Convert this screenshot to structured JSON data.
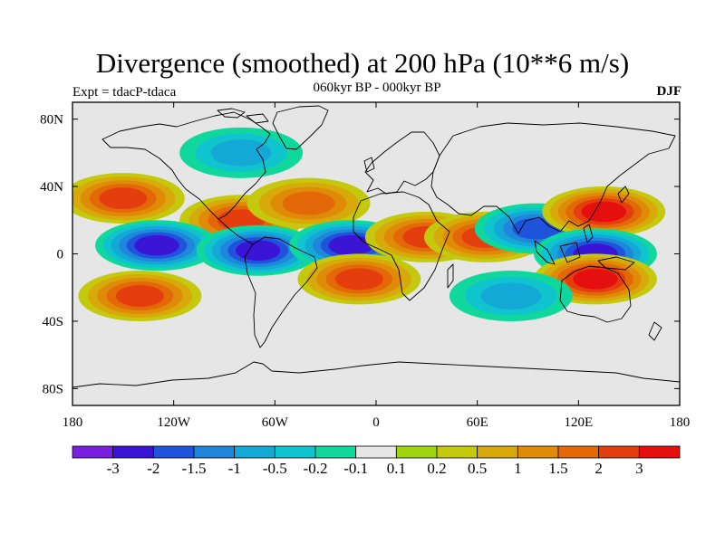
{
  "figure": {
    "title": "Divergence (smoothed) at 200 hPa (10**6 m/s)",
    "subtitle": "060kyr BP - 000kyr BP",
    "experiment": "Expt = tdacP-tdaca",
    "season": "DJF"
  },
  "map": {
    "projection": "cylindrical equidistant",
    "lon_range": [
      -180,
      180
    ],
    "lat_range": [
      -90,
      90
    ],
    "lon_ticks": [
      {
        "value": -180,
        "label": "180"
      },
      {
        "value": -120,
        "label": "120W"
      },
      {
        "value": -60,
        "label": "60W"
      },
      {
        "value": 0,
        "label": "0"
      },
      {
        "value": 60,
        "label": "60E"
      },
      {
        "value": 120,
        "label": "120E"
      },
      {
        "value": 180,
        "label": "180"
      }
    ],
    "lat_ticks": [
      {
        "value": 80,
        "label": "80N"
      },
      {
        "value": 40,
        "label": "40N"
      },
      {
        "value": 0,
        "label": "0"
      },
      {
        "value": -40,
        "label": "40S"
      },
      {
        "value": -80,
        "label": "80S"
      }
    ],
    "background_color": "#e6e6e6",
    "features": [
      {
        "name": "n-pacific-maximum",
        "lon": -150,
        "lat": 33,
        "value": 2.0
      },
      {
        "name": "central-america-maximum",
        "lon": -80,
        "lat": 20,
        "value": 2.0
      },
      {
        "name": "n-atlantic-maximum",
        "lon": -40,
        "lat": 30,
        "value": 1.5
      },
      {
        "name": "equatorial-pacific-minimum",
        "lon": -130,
        "lat": 5,
        "value": -3.0
      },
      {
        "name": "amazon-minimum",
        "lon": -70,
        "lat": 2,
        "value": -3.0
      },
      {
        "name": "equatorial-atlantic-minimum",
        "lon": -15,
        "lat": 5,
        "value": -3.0
      },
      {
        "name": "africa-maximum",
        "lon": 30,
        "lat": 10,
        "value": 2.0
      },
      {
        "name": "arabian-sea-maximum",
        "lon": 65,
        "lat": 10,
        "value": 2.0
      },
      {
        "name": "bay-of-bengal-minimum",
        "lon": 95,
        "lat": 15,
        "value": -2.0
      },
      {
        "name": "w-pacific-maximum",
        "lon": 135,
        "lat": 25,
        "value": 3.0
      },
      {
        "name": "maritime-continent-minimum",
        "lon": 130,
        "lat": 0,
        "value": -3.0
      },
      {
        "name": "s-pacific-maximum",
        "lon": -140,
        "lat": -25,
        "value": 2.0
      },
      {
        "name": "s-atlantic-maximum",
        "lon": -10,
        "lat": -15,
        "value": 2.0
      },
      {
        "name": "n-australia-maximum",
        "lon": 130,
        "lat": -15,
        "value": 3.0
      },
      {
        "name": "s-indian-minimum",
        "lon": 80,
        "lat": -25,
        "value": -1.0
      },
      {
        "name": "arctic-minimum",
        "lon": -80,
        "lat": 60,
        "value": -1.0
      }
    ]
  },
  "colorbar": {
    "colors": [
      "#7a1fe0",
      "#3a15d6",
      "#1f53db",
      "#1f86db",
      "#14a8d6",
      "#10c4cf",
      "#10d89c",
      "#e6e6e6",
      "#9fd40f",
      "#c4c90e",
      "#d8a90b",
      "#df8b08",
      "#e36808",
      "#e43d0e",
      "#e60f0f"
    ],
    "labels": [
      "-3",
      "-2",
      "-1.5",
      "-1",
      "-0.5",
      "-0.2",
      "-0.1",
      "0.1",
      "0.2",
      "0.5",
      "1",
      "1.5",
      "2",
      "3"
    ],
    "levels": [
      -3,
      -2,
      -1.5,
      -1,
      -0.5,
      -0.2,
      -0.1,
      0.1,
      0.2,
      0.5,
      1,
      1.5,
      2,
      3
    ]
  }
}
